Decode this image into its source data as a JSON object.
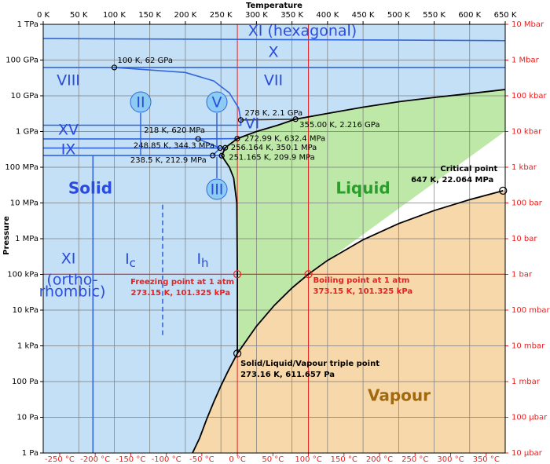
{
  "chart_data": {
    "type": "phase-diagram",
    "title": "Temperature",
    "ylabel": "Pressure",
    "xlim": [
      0,
      650
    ],
    "ylim": [
      1,
      1000000000000.0
    ],
    "yscale": "log",
    "grid": true,
    "xticks": [
      {
        "value": 0,
        "label": "0 K"
      },
      {
        "value": 50,
        "label": "50 K"
      },
      {
        "value": 100,
        "label": "100 K"
      },
      {
        "value": 150,
        "label": "150 K"
      },
      {
        "value": 200,
        "label": "200 K"
      },
      {
        "value": 250,
        "label": "250 K"
      },
      {
        "value": 300,
        "label": "300 K"
      },
      {
        "value": 350,
        "label": "350 K"
      },
      {
        "value": 400,
        "label": "400 K"
      },
      {
        "value": 450,
        "label": "450 K"
      },
      {
        "value": 500,
        "label": "500 K"
      },
      {
        "value": 550,
        "label": "550 K"
      },
      {
        "value": 600,
        "label": "600 K"
      },
      {
        "value": 650,
        "label": "650 K"
      }
    ],
    "x2ticks": [
      {
        "value": 23.15,
        "label": "-250 °C"
      },
      {
        "value": 73.15,
        "label": "-200 °C"
      },
      {
        "value": 123.15,
        "label": "-150 °C"
      },
      {
        "value": 173.15,
        "label": "-100 °C"
      },
      {
        "value": 223.15,
        "label": "-50 °C"
      },
      {
        "value": 273.15,
        "label": "0 °C"
      },
      {
        "value": 323.15,
        "label": "50 °C"
      },
      {
        "value": 373.15,
        "label": "100 °C"
      },
      {
        "value": 423.15,
        "label": "150 °C"
      },
      {
        "value": 473.15,
        "label": "200 °C"
      },
      {
        "value": 523.15,
        "label": "250 °C"
      },
      {
        "value": 573.15,
        "label": "300 °C"
      },
      {
        "value": 623.15,
        "label": "350 °C"
      }
    ],
    "yticks": [
      {
        "value": 1,
        "label": "1 Pa"
      },
      {
        "value": 10,
        "label": "10 Pa"
      },
      {
        "value": 100,
        "label": "100 Pa"
      },
      {
        "value": 1000,
        "label": "1 kPa"
      },
      {
        "value": 10000,
        "label": "10 kPa"
      },
      {
        "value": 100000,
        "label": "100 kPa"
      },
      {
        "value": 1000000,
        "label": "1 MPa"
      },
      {
        "value": 10000000,
        "label": "10 MPa"
      },
      {
        "value": 100000000,
        "label": "100 MPa"
      },
      {
        "value": 1000000000.0,
        "label": "1 GPa"
      },
      {
        "value": 10000000000.0,
        "label": "10 GPa"
      },
      {
        "value": 100000000000.0,
        "label": "100 GPa"
      },
      {
        "value": 1000000000000.0,
        "label": "1 TPa"
      }
    ],
    "y2ticks": [
      {
        "value": 1,
        "label": "10 μbar"
      },
      {
        "value": 10,
        "label": "100 μbar"
      },
      {
        "value": 100,
        "label": "1 mbar"
      },
      {
        "value": 1000,
        "label": "10 mbar"
      },
      {
        "value": 10000,
        "label": "100 mbar"
      },
      {
        "value": 100000,
        "label": "1 bar"
      },
      {
        "value": 1000000,
        "label": "10 bar"
      },
      {
        "value": 10000000,
        "label": "100 bar"
      },
      {
        "value": 100000000,
        "label": "1 kbar"
      },
      {
        "value": 1000000000.0,
        "label": "10 kbar"
      },
      {
        "value": 10000000000.0,
        "label": "100 kbar"
      },
      {
        "value": 100000000000.0,
        "label": "1 Mbar"
      },
      {
        "value": 1000000000000.0,
        "label": "10 Mbar"
      }
    ],
    "boundaries": {
      "sublimation": {
        "color": "#000000",
        "x": [
          210,
          220,
          230,
          240,
          250,
          260,
          273.16
        ],
        "y": [
          1,
          2.6,
          8.9,
          27,
          76,
          195,
          611.657
        ]
      },
      "vaporization": {
        "color": "#000000",
        "x": [
          273.16,
          300,
          325,
          350,
          373.15,
          400,
          450,
          500,
          550,
          600,
          647
        ],
        "y": [
          611.657,
          3537,
          13500,
          41680,
          101325,
          245800,
          932000,
          2639000,
          6120000,
          12340000,
          22064000
        ]
      },
      "melting": {
        "color": "#000000",
        "x": [
          273.16,
          273.15,
          272.4,
          268,
          262,
          256,
          251.165,
          256.164,
          272.99,
          300,
          330,
          355,
          400,
          450,
          500,
          550,
          600,
          650
        ],
        "y": [
          611.657,
          101325,
          10000000,
          50000000,
          100000000,
          150000000,
          209900000,
          350100000,
          632400000,
          1000000000.0,
          1500000000.0,
          2216000000.0,
          3200000000.0,
          4800000000.0,
          6800000000.0,
          9000000000.0,
          11500000000.0,
          15000000000.0
        ]
      }
    },
    "ice_boundaries": [
      {
        "color": "#3366dd",
        "x": [
          0,
          650
        ],
        "y": [
          400000000000.0,
          350000000000.0
        ]
      },
      {
        "color": "#3366dd",
        "x": [
          0,
          100,
          650
        ],
        "y": [
          62000000000.0,
          62000000000.0,
          62000000000.0
        ]
      },
      {
        "color": "#3366dd",
        "x": [
          100,
          200,
          240,
          262,
          275,
          278
        ],
        "y": [
          62000000000.0,
          45000000000.0,
          26000000000.0,
          12000000000.0,
          4500000000.0,
          2100000000.0
        ]
      },
      {
        "color": "#333333",
        "x": [
          278,
          355
        ],
        "y": [
          2100000000.0,
          2216000000.0
        ]
      },
      {
        "color": "#3366dd",
        "x": [
          0,
          278,
          278
        ],
        "y": [
          1500000000.0,
          1500000000.0,
          2100000000.0
        ]
      },
      {
        "color": "#3366dd",
        "x": [
          0,
          218,
          272.99
        ],
        "y": [
          620000000.0,
          620000000.0,
          632400000.0
        ]
      },
      {
        "color": "#3366dd",
        "x": [
          0,
          248.85,
          256.164
        ],
        "y": [
          344300000.0,
          344300000.0,
          350100000.0
        ]
      },
      {
        "color": "#3366dd",
        "x": [
          0,
          238.5,
          251.165
        ],
        "y": [
          212900000.0,
          212900000.0,
          209900000.0
        ]
      },
      {
        "color": "#3366dd",
        "x": [
          238.5,
          248.85,
          218
        ],
        "y": [
          212900000.0,
          344300000.0,
          620000000.0
        ]
      },
      {
        "color": "#3366dd",
        "x": [
          70,
          70
        ],
        "y": [
          1,
          212900000.0
        ]
      },
      {
        "color": "#3366dd",
        "dashed": true,
        "x": [
          168,
          168
        ],
        "y": [
          2000,
          10000000
        ]
      }
    ],
    "points": [
      {
        "x": 100,
        "y": 62000000000.0,
        "label": "100 K, 62 GPa"
      },
      {
        "x": 278,
        "y": 2100000000.0,
        "label": "278 K, 2.1 GPa"
      },
      {
        "x": 355,
        "y": 2216000000.0,
        "label": "355.00 K, 2.216 GPa"
      },
      {
        "x": 218,
        "y": 620000000.0,
        "label": "218 K, 620 MPa"
      },
      {
        "x": 272.99,
        "y": 632400000.0,
        "label": "272.99 K, 632.4 MPa"
      },
      {
        "x": 248.85,
        "y": 344300000.0,
        "label": "248.85 K, 344.3 MPa"
      },
      {
        "x": 256.164,
        "y": 350100000.0,
        "label": "256.164 K, 350.1 MPa"
      },
      {
        "x": 238.5,
        "y": 212900000.0,
        "label": "238.5 K, 212.9 MPa"
      },
      {
        "x": 251.165,
        "y": 209900000.0,
        "label": "251.165 K, 209.9 MPa"
      },
      {
        "x": 647,
        "y": 22064000,
        "title": "Critical point",
        "label": "647 K, 22.064 MPa"
      },
      {
        "x": 273.16,
        "y": 611.657,
        "title": "Solid/Liquid/Vapour triple point",
        "label": "273.16 K, 611.657 Pa"
      },
      {
        "x": 273.15,
        "y": 101325,
        "title": "Freezing point at 1 atm",
        "label": "273.15 K, 101.325 kPa"
      },
      {
        "x": 373.15,
        "y": 101325,
        "title": "Boiling point at 1 atm",
        "label": "373.15 K, 101.325 kPa"
      }
    ],
    "regions": [
      "XI (hexagonal)",
      "X",
      "VIII",
      "VII",
      "II",
      "V",
      "VI",
      "XV",
      "IX",
      "III",
      "Solid",
      "Liquid",
      "Vapour",
      "XI",
      "(ortho-",
      "rhombic)",
      "I",
      "c",
      "I",
      "h"
    ],
    "colors": {
      "solid": "#c3e0f6",
      "liquid": "#bde8a8",
      "vapour": "#f6d8ab",
      "supercritical": "#ffffff",
      "reference": "#e82020"
    }
  }
}
